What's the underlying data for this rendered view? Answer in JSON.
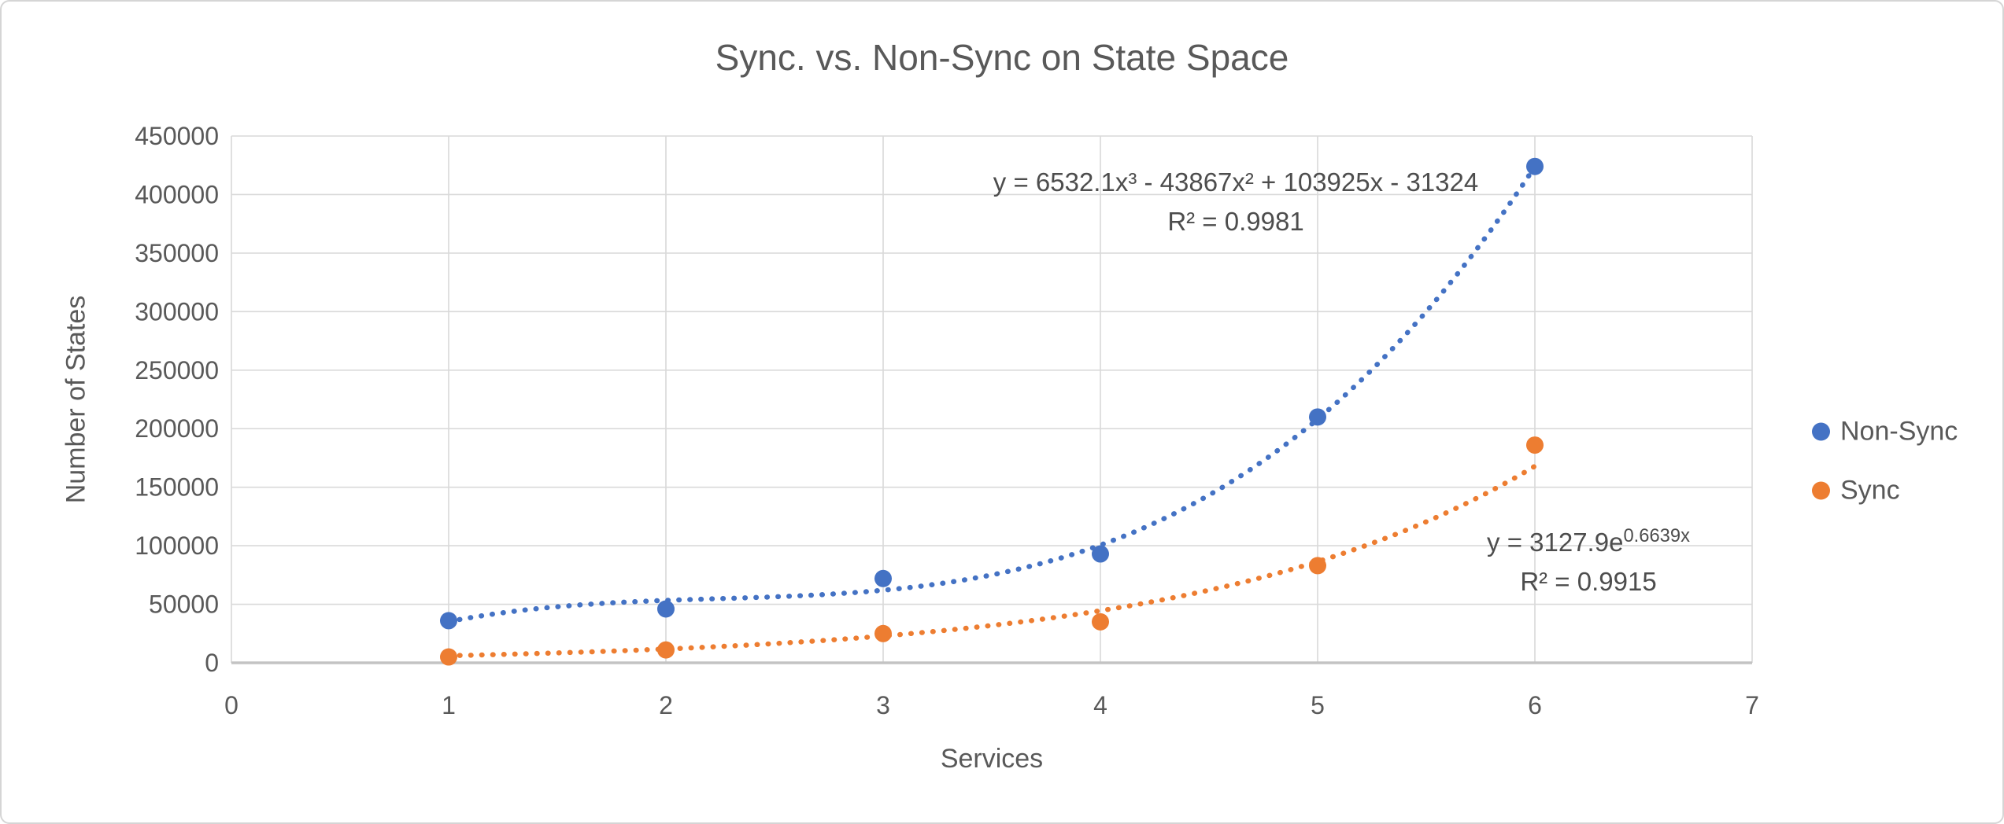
{
  "frame": {
    "background": "#ffffff",
    "border_color": "#d5d5d5"
  },
  "colors": {
    "nonsync_blue": "#4472C4",
    "sync_orange": "#ED7D31",
    "gridline": "#d9d9d9",
    "axis_line": "#c3c3c3",
    "text_gray": "#595959",
    "equation_gray": "#4d4d4d"
  },
  "chart_data": {
    "type": "scatter",
    "title": "Sync. vs. Non-Sync on State Space",
    "xlabel": "Services",
    "ylabel": "Number of States",
    "xlim": [
      0,
      7
    ],
    "ylim": [
      0,
      450000
    ],
    "x_ticks": [
      0,
      1,
      2,
      3,
      4,
      5,
      6,
      7
    ],
    "y_ticks": [
      0,
      50000,
      100000,
      150000,
      200000,
      250000,
      300000,
      350000,
      400000,
      450000
    ],
    "grid": true,
    "legend_position": "right",
    "marker_style": "filled-circle-with-dotted-trendline",
    "series": [
      {
        "name": "Non-Sync",
        "color": "#4472C4",
        "x": [
          1,
          2,
          3,
          4,
          5,
          6
        ],
        "y": [
          36000,
          46000,
          72000,
          93000,
          210000,
          424000
        ],
        "trendline": {
          "type": "polynomial",
          "order": 3,
          "coefficients": [
            6532.1,
            -43867,
            103925,
            -31324
          ],
          "equation": "y = 6532.1x³ - 43867x² + 103925x - 31324",
          "r2_label": "R² = 0.9981"
        }
      },
      {
        "name": "Sync",
        "color": "#ED7D31",
        "x": [
          1,
          2,
          3,
          4,
          5,
          6
        ],
        "y": [
          5000,
          11000,
          25000,
          35000,
          83000,
          186000
        ],
        "trendline": {
          "type": "exponential",
          "a": 3127.9,
          "b": 0.6639,
          "equation_base": "y = 3127.9e",
          "equation_exponent": "0.6639x",
          "r2_label": "R² = 0.9915"
        }
      }
    ]
  }
}
